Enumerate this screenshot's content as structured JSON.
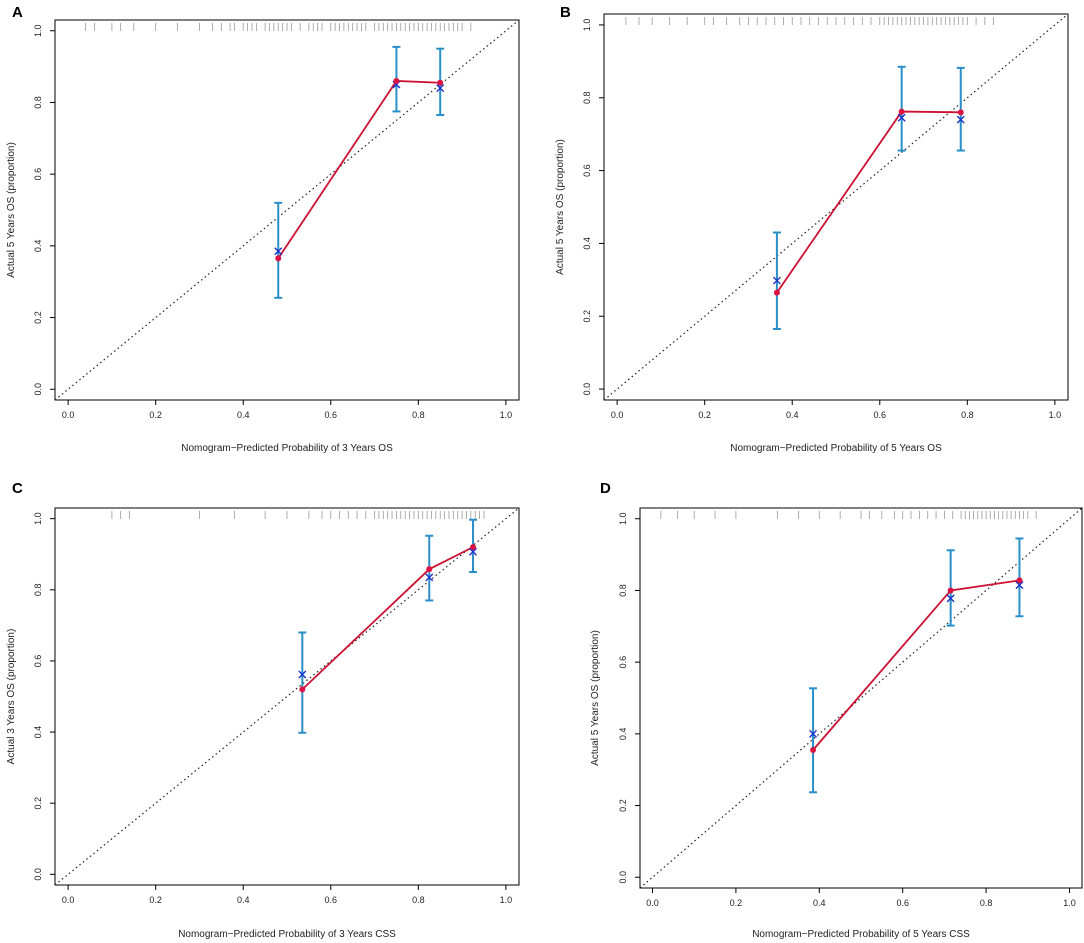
{
  "colors": {
    "calibration_line": "#cc1133",
    "observed_point": "#dd1144",
    "bias_corrected": "#1a33cc",
    "error_bar": "#2a8fc9",
    "ideal_line": "#222222",
    "rug": "#999999",
    "frame": "#000000"
  },
  "chart_data": [
    {
      "type": "scatter",
      "panel": "A",
      "xlabel": "Nomogram−Predicted Probability of 3 Years OS",
      "ylabel": "Actual 5 Years OS (proportion)",
      "xlim": [
        -0.03,
        1.03
      ],
      "ylim": [
        -0.03,
        1.03
      ],
      "x_ticks": [
        "0.0",
        "0.2",
        "0.4",
        "0.6",
        "0.8",
        "1.0"
      ],
      "y_ticks": [
        "0.0",
        "0.2",
        "0.4",
        "0.6",
        "0.8",
        "1.0"
      ],
      "series": [
        {
          "name": "observed",
          "x": [
            0.48,
            0.75,
            0.85
          ],
          "y": [
            0.365,
            0.86,
            0.855
          ]
        },
        {
          "name": "bias-corrected",
          "x": [
            0.48,
            0.75,
            0.85
          ],
          "y": [
            0.385,
            0.85,
            0.84
          ]
        }
      ],
      "ci_low": [
        0.255,
        0.775,
        0.765
      ],
      "ci_high": [
        0.52,
        0.955,
        0.95
      ],
      "rug": [
        0.04,
        0.06,
        0.1,
        0.12,
        0.15,
        0.2,
        0.25,
        0.3,
        0.33,
        0.35,
        0.37,
        0.38,
        0.4,
        0.41,
        0.42,
        0.43,
        0.45,
        0.46,
        0.47,
        0.48,
        0.49,
        0.5,
        0.51,
        0.53,
        0.55,
        0.56,
        0.57,
        0.58,
        0.6,
        0.61,
        0.62,
        0.63,
        0.64,
        0.65,
        0.66,
        0.67,
        0.68,
        0.7,
        0.71,
        0.72,
        0.73,
        0.74,
        0.75,
        0.76,
        0.77,
        0.78,
        0.79,
        0.8,
        0.81,
        0.82,
        0.83,
        0.84,
        0.85,
        0.86,
        0.87,
        0.88,
        0.89,
        0.9,
        0.92
      ]
    },
    {
      "type": "scatter",
      "panel": "B",
      "xlabel": "Nomogram−Predicted Probability of 5 Years OS",
      "ylabel": "Actual 5 Years OS (proportion)",
      "xlim": [
        -0.03,
        1.03
      ],
      "ylim": [
        -0.03,
        1.03
      ],
      "x_ticks": [
        "0.0",
        "0.2",
        "0.4",
        "0.6",
        "0.8",
        "1.0"
      ],
      "y_ticks": [
        "0.0",
        "0.2",
        "0.4",
        "0.6",
        "0.8",
        "1.0"
      ],
      "series": [
        {
          "name": "observed",
          "x": [
            0.365,
            0.65,
            0.785
          ],
          "y": [
            0.265,
            0.762,
            0.76
          ]
        },
        {
          "name": "bias-corrected",
          "x": [
            0.365,
            0.65,
            0.785
          ],
          "y": [
            0.298,
            0.745,
            0.74
          ]
        }
      ],
      "ci_low": [
        0.165,
        0.655,
        0.655
      ],
      "ci_high": [
        0.43,
        0.885,
        0.882
      ],
      "rug": [
        0.02,
        0.05,
        0.08,
        0.12,
        0.16,
        0.2,
        0.22,
        0.25,
        0.28,
        0.3,
        0.32,
        0.34,
        0.36,
        0.38,
        0.4,
        0.42,
        0.44,
        0.46,
        0.48,
        0.5,
        0.52,
        0.54,
        0.56,
        0.58,
        0.6,
        0.61,
        0.62,
        0.63,
        0.64,
        0.65,
        0.66,
        0.67,
        0.68,
        0.69,
        0.7,
        0.71,
        0.72,
        0.73,
        0.74,
        0.75,
        0.76,
        0.77,
        0.78,
        0.79,
        0.8,
        0.82,
        0.84,
        0.86
      ]
    },
    {
      "type": "scatter",
      "panel": "C",
      "xlabel": "Nomogram−Predicted Probability of 3 Years CSS",
      "ylabel": "Actual 3 Years OS (proportion)",
      "xlim": [
        -0.03,
        1.03
      ],
      "ylim": [
        -0.03,
        1.03
      ],
      "x_ticks": [
        "0.0",
        "0.2",
        "0.4",
        "0.6",
        "0.8",
        "1.0"
      ],
      "y_ticks": [
        "0.0",
        "0.2",
        "0.4",
        "0.6",
        "0.8",
        "1.0"
      ],
      "series": [
        {
          "name": "observed",
          "x": [
            0.535,
            0.825,
            0.925
          ],
          "y": [
            0.52,
            0.858,
            0.92
          ]
        },
        {
          "name": "bias-corrected",
          "x": [
            0.535,
            0.825,
            0.925
          ],
          "y": [
            0.562,
            0.835,
            0.907
          ]
        }
      ],
      "ci_low": [
        0.398,
        0.77,
        0.85
      ],
      "ci_high": [
        0.68,
        0.952,
        0.997
      ],
      "rug": [
        0.1,
        0.12,
        0.14,
        0.3,
        0.38,
        0.45,
        0.5,
        0.55,
        0.58,
        0.6,
        0.62,
        0.64,
        0.66,
        0.68,
        0.7,
        0.71,
        0.72,
        0.73,
        0.74,
        0.75,
        0.76,
        0.77,
        0.78,
        0.79,
        0.8,
        0.81,
        0.82,
        0.83,
        0.84,
        0.85,
        0.86,
        0.87,
        0.88,
        0.89,
        0.9,
        0.91,
        0.92,
        0.93,
        0.94,
        0.95
      ]
    },
    {
      "type": "scatter",
      "panel": "D",
      "xlabel": "Nomogram−Predicted Probability of 5 Years CSS",
      "ylabel": "Actual 5 Years OS (proportion)",
      "xlim": [
        -0.03,
        1.03
      ],
      "ylim": [
        -0.03,
        1.03
      ],
      "x_ticks": [
        "0.0",
        "0.2",
        "0.4",
        "0.6",
        "0.8",
        "1.0"
      ],
      "y_ticks": [
        "0.0",
        "0.2",
        "0.4",
        "0.6",
        "0.8",
        "1.0"
      ],
      "series": [
        {
          "name": "observed",
          "x": [
            0.385,
            0.715,
            0.88
          ],
          "y": [
            0.355,
            0.8,
            0.828
          ]
        },
        {
          "name": "bias-corrected",
          "x": [
            0.385,
            0.715,
            0.88
          ],
          "y": [
            0.4,
            0.778,
            0.815
          ]
        }
      ],
      "ci_low": [
        0.237,
        0.702,
        0.728
      ],
      "ci_high": [
        0.527,
        0.912,
        0.945
      ],
      "rug": [
        0.02,
        0.06,
        0.1,
        0.15,
        0.2,
        0.3,
        0.35,
        0.4,
        0.45,
        0.5,
        0.52,
        0.55,
        0.58,
        0.6,
        0.62,
        0.64,
        0.66,
        0.68,
        0.7,
        0.72,
        0.74,
        0.75,
        0.76,
        0.77,
        0.78,
        0.79,
        0.8,
        0.81,
        0.82,
        0.83,
        0.84,
        0.85,
        0.86,
        0.87,
        0.88,
        0.89,
        0.9,
        0.92
      ]
    }
  ]
}
